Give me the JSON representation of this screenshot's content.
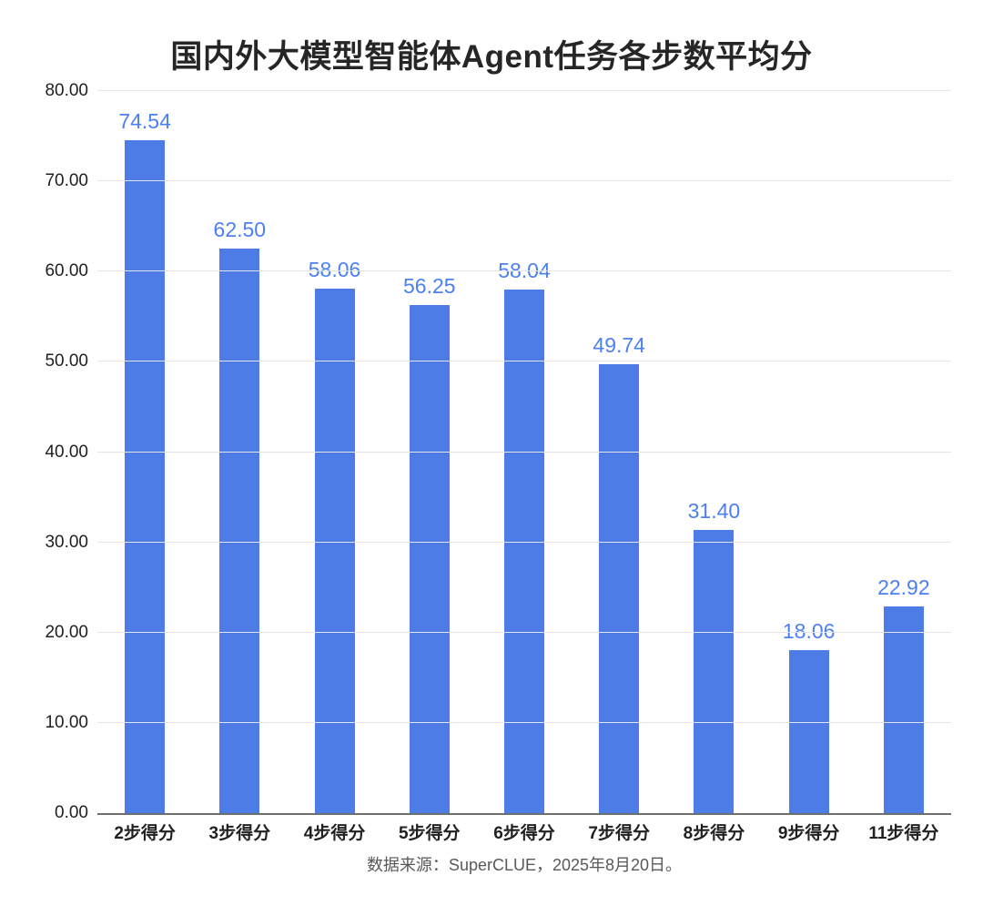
{
  "page": {
    "title": "国内外大模型智能体Agent任务各步数平均分",
    "source_note": "数据来源：SuperCLUE，2025年8月20日。"
  },
  "chart_data": {
    "type": "bar",
    "title": "国内外大模型智能体Agent任务各步数平均分",
    "categories": [
      "2步得分",
      "3步得分",
      "4步得分",
      "5步得分",
      "6步得分",
      "7步得分",
      "8步得分",
      "9步得分",
      "11步得分"
    ],
    "values": [
      74.54,
      62.5,
      58.06,
      56.25,
      58.04,
      49.74,
      31.4,
      18.06,
      22.92
    ],
    "value_labels": [
      "74.54",
      "62.50",
      "58.06",
      "56.25",
      "58.04",
      "49.74",
      "31.40",
      "18.06",
      "22.92"
    ],
    "xlabel": "",
    "ylabel": "",
    "ylim": [
      0,
      80
    ],
    "ytick_step": 10,
    "ytick_labels": [
      "0.00",
      "10.00",
      "20.00",
      "30.00",
      "40.00",
      "50.00",
      "60.00",
      "70.00",
      "80.00"
    ],
    "grid": true,
    "legend_position": "none",
    "source_note": "数据来源：SuperCLUE，2025年8月20日。",
    "colors": {
      "bar": "#4E7CE6",
      "value_label": "#4C80F0",
      "gridline": "#E4E4E4",
      "axis_line": "#6E6E6E",
      "title_text": "#262626",
      "tick_text": "#1F1F1F",
      "source_text": "#595959"
    }
  }
}
